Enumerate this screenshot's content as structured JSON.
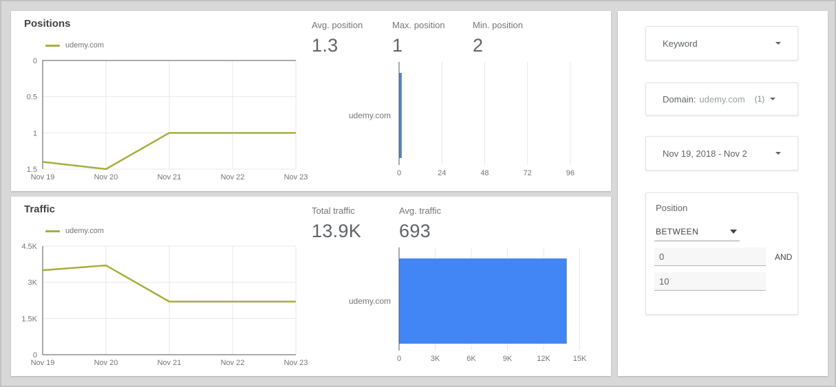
{
  "theme": {
    "page_bg": "#d8d8d8",
    "card_bg": "#ffffff",
    "accent_olive": "#a6ae3d",
    "accent_blue": "#4285f4",
    "bar_steel_blue": "#5585c2",
    "text_dark": "#424242",
    "text_medium": "#5f6368",
    "text_gray": "#757575",
    "grid_color": "#e8e8e8",
    "axis_color": "#545454"
  },
  "positions_panel": {
    "title": "Positions",
    "legend": "udemy.com",
    "stats": [
      {
        "label": "Avg. position",
        "value": "1.3"
      },
      {
        "label": "Max. position",
        "value": "1"
      },
      {
        "label": "Min. position",
        "value": "2"
      }
    ]
  },
  "traffic_panel": {
    "title": "Traffic",
    "legend": "udemy.com",
    "stats": [
      {
        "label": "Total traffic",
        "value": "13.9K"
      },
      {
        "label": "Avg. traffic",
        "value": "693"
      }
    ]
  },
  "filters": {
    "keyword": {
      "label": "Keyword"
    },
    "domain": {
      "label": "Domain:",
      "value": "udemy.com",
      "count": "(1)"
    },
    "date_range": {
      "value": "Nov 19, 2018 - Nov 2"
    },
    "position": {
      "title": "Position",
      "operator": "BETWEEN",
      "from": "0",
      "and_label": "AND",
      "to": "10"
    }
  },
  "chart_data": [
    {
      "id": "positions-line",
      "type": "line",
      "target": "positions-svg",
      "title": "Positions",
      "categories": [
        "Nov 19",
        "Nov 20",
        "Nov 21",
        "Nov 22",
        "Nov 23"
      ],
      "series": [
        {
          "name": "udemy.com",
          "values": [
            1.4,
            1.5,
            1.0,
            1.0,
            1.0
          ]
        }
      ],
      "ylim": [
        0,
        1.5
      ],
      "y_inverted": true,
      "y_ticks": [
        {
          "v": 0,
          "label": "0"
        },
        {
          "v": 0.5,
          "label": "0.5"
        },
        {
          "v": 1,
          "label": "1"
        },
        {
          "v": 1.5,
          "label": "1.5"
        }
      ],
      "grid": true,
      "legend_position": "top-left",
      "color_key": "accent_olive"
    },
    {
      "id": "positions-bar",
      "type": "bar",
      "target": "positions-svg",
      "orientation": "horizontal",
      "categories": [
        "udemy.com"
      ],
      "values": [
        1.3
      ],
      "xlim": [
        0,
        108
      ],
      "x_ticks": [
        {
          "v": 0,
          "label": "0"
        },
        {
          "v": 24,
          "label": "24"
        },
        {
          "v": 48,
          "label": "48"
        },
        {
          "v": 72,
          "label": "72"
        },
        {
          "v": 96,
          "label": "96"
        }
      ],
      "grid": true,
      "color_key": "bar_steel_blue"
    },
    {
      "id": "traffic-line",
      "type": "line",
      "target": "traffic-svg",
      "title": "Traffic",
      "categories": [
        "Nov 19",
        "Nov 20",
        "Nov 21",
        "Nov 22",
        "Nov 23"
      ],
      "series": [
        {
          "name": "udemy.com",
          "values": [
            3500,
            3700,
            2200,
            2200,
            2200
          ]
        }
      ],
      "ylim": [
        0,
        4500
      ],
      "y_inverted": false,
      "y_ticks": [
        {
          "v": 0,
          "label": "0"
        },
        {
          "v": 1500,
          "label": "1.5K"
        },
        {
          "v": 3000,
          "label": "3K"
        },
        {
          "v": 4500,
          "label": "4.5K"
        }
      ],
      "grid": true,
      "legend_position": "top-left",
      "color_key": "accent_olive"
    },
    {
      "id": "traffic-bar",
      "type": "bar",
      "target": "traffic-svg",
      "orientation": "horizontal",
      "categories": [
        "udemy.com"
      ],
      "values": [
        13900
      ],
      "xlim": [
        0,
        16000
      ],
      "x_ticks": [
        {
          "v": 0,
          "label": "0"
        },
        {
          "v": 3000,
          "label": "3K"
        },
        {
          "v": 6000,
          "label": "6K"
        },
        {
          "v": 9000,
          "label": "9K"
        },
        {
          "v": 12000,
          "label": "12K"
        },
        {
          "v": 15000,
          "label": "15K"
        }
      ],
      "grid": true,
      "color_key": "accent_blue"
    }
  ]
}
